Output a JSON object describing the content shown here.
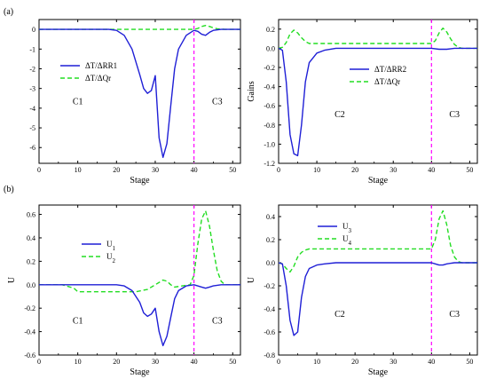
{
  "panel_tags": [
    "(a)",
    "(b)"
  ],
  "colors": {
    "series1": "#1f1fd6",
    "series2": "#22dd22",
    "stage_line": "#ff00ff",
    "axis": "#000000"
  },
  "chart_data": [
    {
      "type": "line",
      "tag": "(a)",
      "xlabel": "Stage",
      "ylabel": "",
      "xlim": [
        0,
        52
      ],
      "ylim": [
        -6.8,
        0.5
      ],
      "xticks": [
        0,
        10,
        20,
        30,
        40,
        50
      ],
      "yticks": [
        0,
        -1,
        -2,
        -3,
        -4,
        -5,
        -6
      ],
      "ytick_labels": [
        "0",
        "-1",
        "-2",
        "-3",
        "-4",
        "-5",
        "-6"
      ],
      "vline_x": 40,
      "region_labels": [
        {
          "text": "C1",
          "x": 10,
          "y": -3.8
        },
        {
          "text": "C3",
          "x": 46,
          "y": -3.8
        }
      ],
      "legend_position": "upper-left",
      "series": [
        {
          "name": "ΔT/ΔRR1",
          "style": "solid",
          "x": [
            0,
            18,
            20,
            22,
            24,
            26,
            27,
            28,
            29,
            30,
            31,
            32,
            33,
            34,
            35,
            36,
            38,
            40,
            41,
            42,
            43,
            44,
            45,
            47,
            52
          ],
          "y": [
            0,
            0,
            -0.05,
            -0.3,
            -1.0,
            -2.3,
            -3.0,
            -3.25,
            -3.1,
            -2.35,
            -5.5,
            -6.5,
            -5.8,
            -3.9,
            -2.0,
            -1.0,
            -0.3,
            -0.05,
            -0.1,
            -0.25,
            -0.3,
            -0.15,
            -0.05,
            0,
            0
          ]
        },
        {
          "name": "ΔT/ΔQr",
          "style": "dashed",
          "x": [
            0,
            39,
            40,
            41,
            42,
            43,
            44,
            45,
            46,
            48,
            52
          ],
          "y": [
            0,
            0,
            0,
            0.05,
            0.15,
            0.2,
            0.15,
            0.08,
            0.03,
            0,
            0
          ]
        }
      ]
    },
    {
      "type": "line",
      "tag": "",
      "xlabel": "Stage",
      "ylabel": "Gains",
      "xlim": [
        0,
        52
      ],
      "ylim": [
        -1.2,
        0.3
      ],
      "xticks": [
        0,
        10,
        20,
        30,
        40,
        50
      ],
      "yticks": [
        0.2,
        0.0,
        -0.2,
        -0.4,
        -0.6,
        -0.8,
        -1.0,
        -1.2
      ],
      "ytick_labels": [
        "0.2",
        "0.0",
        "-0.2",
        "-0.4",
        "-0.6",
        "-0.8",
        "-1.0",
        "-1.2"
      ],
      "vline_x": 40,
      "region_labels": [
        {
          "text": "C2",
          "x": 16,
          "y": -0.72
        },
        {
          "text": "C3",
          "x": 46,
          "y": -0.72
        }
      ],
      "legend_position": "center-right",
      "series": [
        {
          "name": "ΔT/ΔRR2",
          "style": "solid",
          "x": [
            0,
            1,
            2,
            3,
            4,
            5,
            6,
            7,
            8,
            10,
            12,
            15,
            20,
            40,
            42,
            44,
            46,
            52
          ],
          "y": [
            0,
            -0.02,
            -0.35,
            -0.9,
            -1.1,
            -1.12,
            -0.8,
            -0.35,
            -0.15,
            -0.05,
            -0.02,
            0,
            0,
            0,
            -0.01,
            -0.01,
            0,
            0
          ]
        },
        {
          "name": "ΔT/ΔQr",
          "style": "dashed",
          "x": [
            0,
            1,
            2,
            3,
            4,
            5,
            6,
            7,
            8,
            10,
            40,
            41,
            42,
            43,
            44,
            45,
            46,
            47,
            48,
            52
          ],
          "y": [
            0,
            0.01,
            0.06,
            0.15,
            0.19,
            0.16,
            0.11,
            0.07,
            0.05,
            0.05,
            0.05,
            0.08,
            0.16,
            0.21,
            0.17,
            0.1,
            0.04,
            0.01,
            0,
            0
          ]
        }
      ]
    },
    {
      "type": "line",
      "tag": "(b)",
      "xlabel": "Stage",
      "ylabel": "U",
      "xlim": [
        0,
        52
      ],
      "ylim": [
        -0.6,
        0.68
      ],
      "xticks": [
        0,
        10,
        20,
        30,
        40,
        50
      ],
      "yticks": [
        0.6,
        0.4,
        0.2,
        0.0,
        -0.2,
        -0.4,
        -0.6
      ],
      "ytick_labels": [
        "0.6",
        "0.4",
        "0.2",
        "0.0",
        "-0.2",
        "-0.4",
        "-0.6"
      ],
      "vline_x": 40,
      "region_labels": [
        {
          "text": "C1",
          "x": 10,
          "y": -0.33
        },
        {
          "text": "C3",
          "x": 46,
          "y": -0.33
        }
      ],
      "legend_position": "upper-left",
      "series": [
        {
          "name": "U1",
          "style": "solid",
          "x": [
            0,
            20,
            22,
            24,
            26,
            27,
            28,
            29,
            30,
            31,
            32,
            33,
            34,
            35,
            36,
            38,
            40,
            42,
            43,
            44,
            45,
            47,
            52
          ],
          "y": [
            0,
            0,
            -0.01,
            -0.05,
            -0.15,
            -0.24,
            -0.27,
            -0.25,
            -0.2,
            -0.4,
            -0.52,
            -0.44,
            -0.28,
            -0.12,
            -0.05,
            -0.01,
            0,
            -0.02,
            -0.03,
            -0.02,
            -0.01,
            0,
            0
          ]
        },
        {
          "name": "U2",
          "style": "dashed",
          "x": [
            0,
            6,
            9,
            10,
            12,
            15,
            20,
            25,
            28,
            30,
            32,
            33,
            34,
            35,
            37,
            39,
            40,
            41,
            42,
            43,
            44,
            45,
            46,
            47,
            48,
            52
          ],
          "y": [
            0,
            0,
            -0.03,
            -0.06,
            -0.06,
            -0.06,
            -0.06,
            -0.06,
            -0.04,
            0,
            0.04,
            0.03,
            0,
            -0.02,
            -0.01,
            0,
            0.08,
            0.35,
            0.56,
            0.63,
            0.5,
            0.3,
            0.12,
            0.03,
            0,
            0
          ]
        }
      ]
    },
    {
      "type": "line",
      "tag": "",
      "xlabel": "Stage",
      "ylabel": "U",
      "xlim": [
        0,
        52
      ],
      "ylim": [
        -0.8,
        0.5
      ],
      "xticks": [
        0,
        10,
        20,
        30,
        40,
        50
      ],
      "yticks": [
        0.4,
        0.2,
        0.0,
        -0.2,
        -0.4,
        -0.6,
        -0.8
      ],
      "ytick_labels": [
        "0.4",
        "0.2",
        "0.0",
        "-0.2",
        "-0.4",
        "-0.6",
        "-0.8"
      ],
      "vline_x": 40,
      "region_labels": [
        {
          "text": "C2",
          "x": 16,
          "y": -0.47
        },
        {
          "text": "C3",
          "x": 46,
          "y": -0.47
        }
      ],
      "legend_position": "upper-left",
      "series": [
        {
          "name": "U3",
          "style": "solid",
          "x": [
            0,
            1,
            2,
            3,
            4,
            5,
            6,
            7,
            8,
            10,
            12,
            15,
            20,
            40,
            41,
            42,
            43,
            44,
            46,
            52
          ],
          "y": [
            0,
            -0.01,
            -0.2,
            -0.5,
            -0.63,
            -0.6,
            -0.3,
            -0.12,
            -0.05,
            -0.02,
            -0.01,
            0,
            0,
            0,
            -0.01,
            -0.02,
            -0.02,
            -0.01,
            0,
            0
          ]
        },
        {
          "name": "U4",
          "style": "dashed",
          "x": [
            0,
            1,
            2,
            3,
            4,
            5,
            6,
            7,
            8,
            10,
            40,
            41,
            42,
            43,
            44,
            45,
            46,
            47,
            48,
            52
          ],
          "y": [
            0,
            -0.01,
            -0.05,
            -0.08,
            -0.03,
            0.05,
            0.09,
            0.11,
            0.12,
            0.12,
            0.12,
            0.2,
            0.38,
            0.45,
            0.33,
            0.15,
            0.05,
            0.01,
            0,
            0
          ]
        }
      ]
    }
  ]
}
